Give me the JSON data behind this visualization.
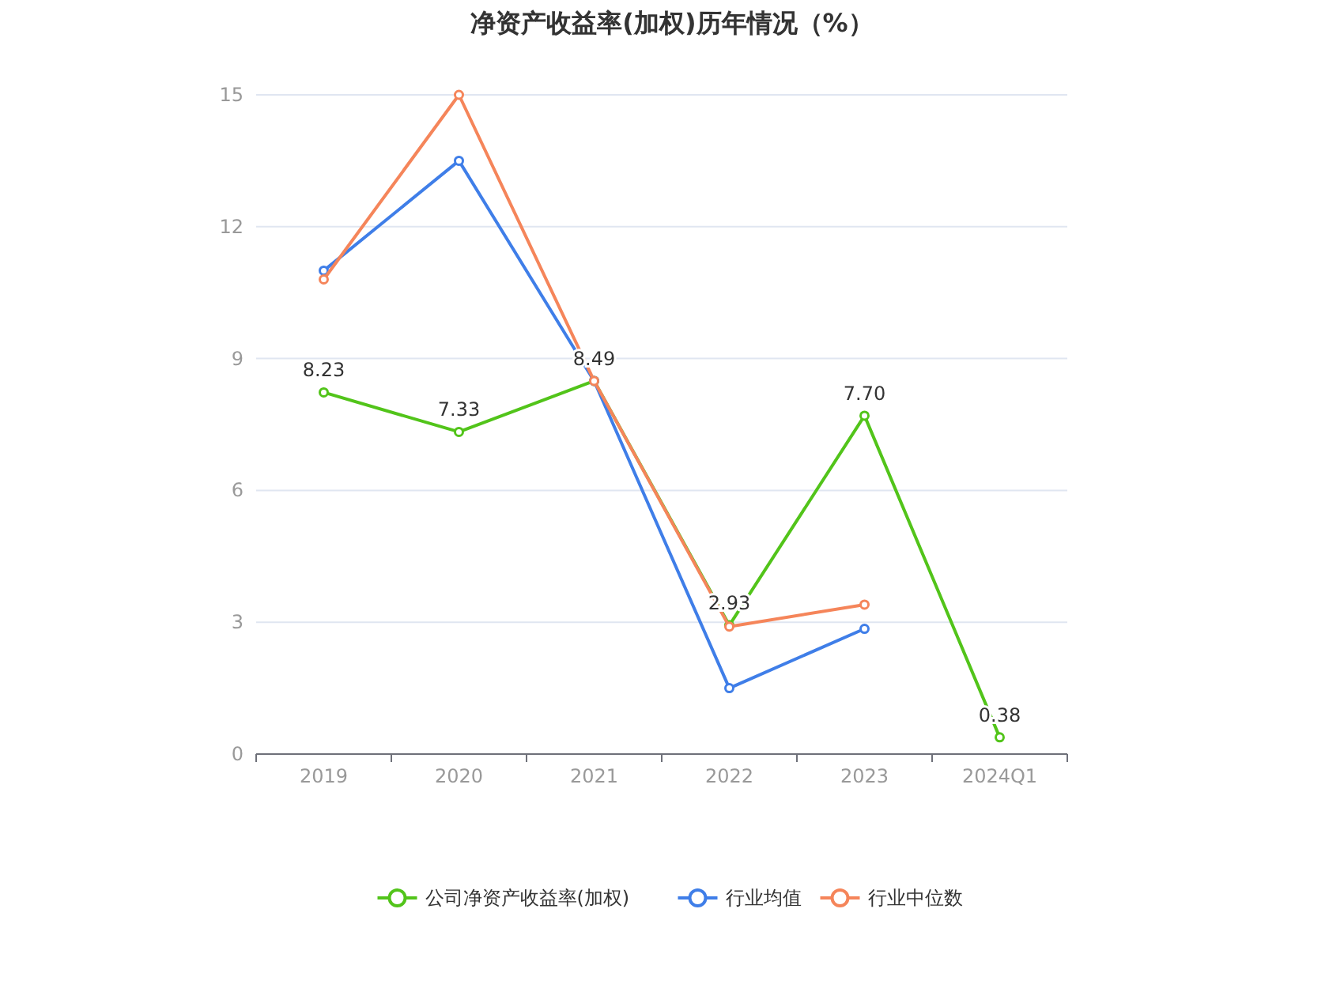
{
  "chart_data": {
    "type": "line",
    "title": "净资产收益率(加权)历年情况（%）",
    "categories": [
      "2019",
      "2020",
      "2021",
      "2022",
      "2023",
      "2024Q1"
    ],
    "series": [
      {
        "name": "公司净资产收益率(加权)",
        "color": "#52c41a",
        "values": [
          8.23,
          7.33,
          8.49,
          2.93,
          7.7,
          0.38
        ],
        "value_labels": [
          "8.23",
          "7.33",
          "8.49",
          "2.93",
          "7.70",
          "0.38"
        ]
      },
      {
        "name": "行业均值",
        "color": "#3f7ee8",
        "values": [
          11.0,
          13.5,
          8.49,
          1.5,
          2.85,
          null
        ]
      },
      {
        "name": "行业中位数",
        "color": "#f5855a",
        "values": [
          10.8,
          15.0,
          8.49,
          2.9,
          3.4,
          null
        ]
      }
    ],
    "ylim": [
      0,
      15
    ],
    "yticks": [
      0,
      3,
      6,
      9,
      12,
      15
    ],
    "grid": "y",
    "legend": "bottom",
    "marker": "circle",
    "line_style": "solid"
  }
}
